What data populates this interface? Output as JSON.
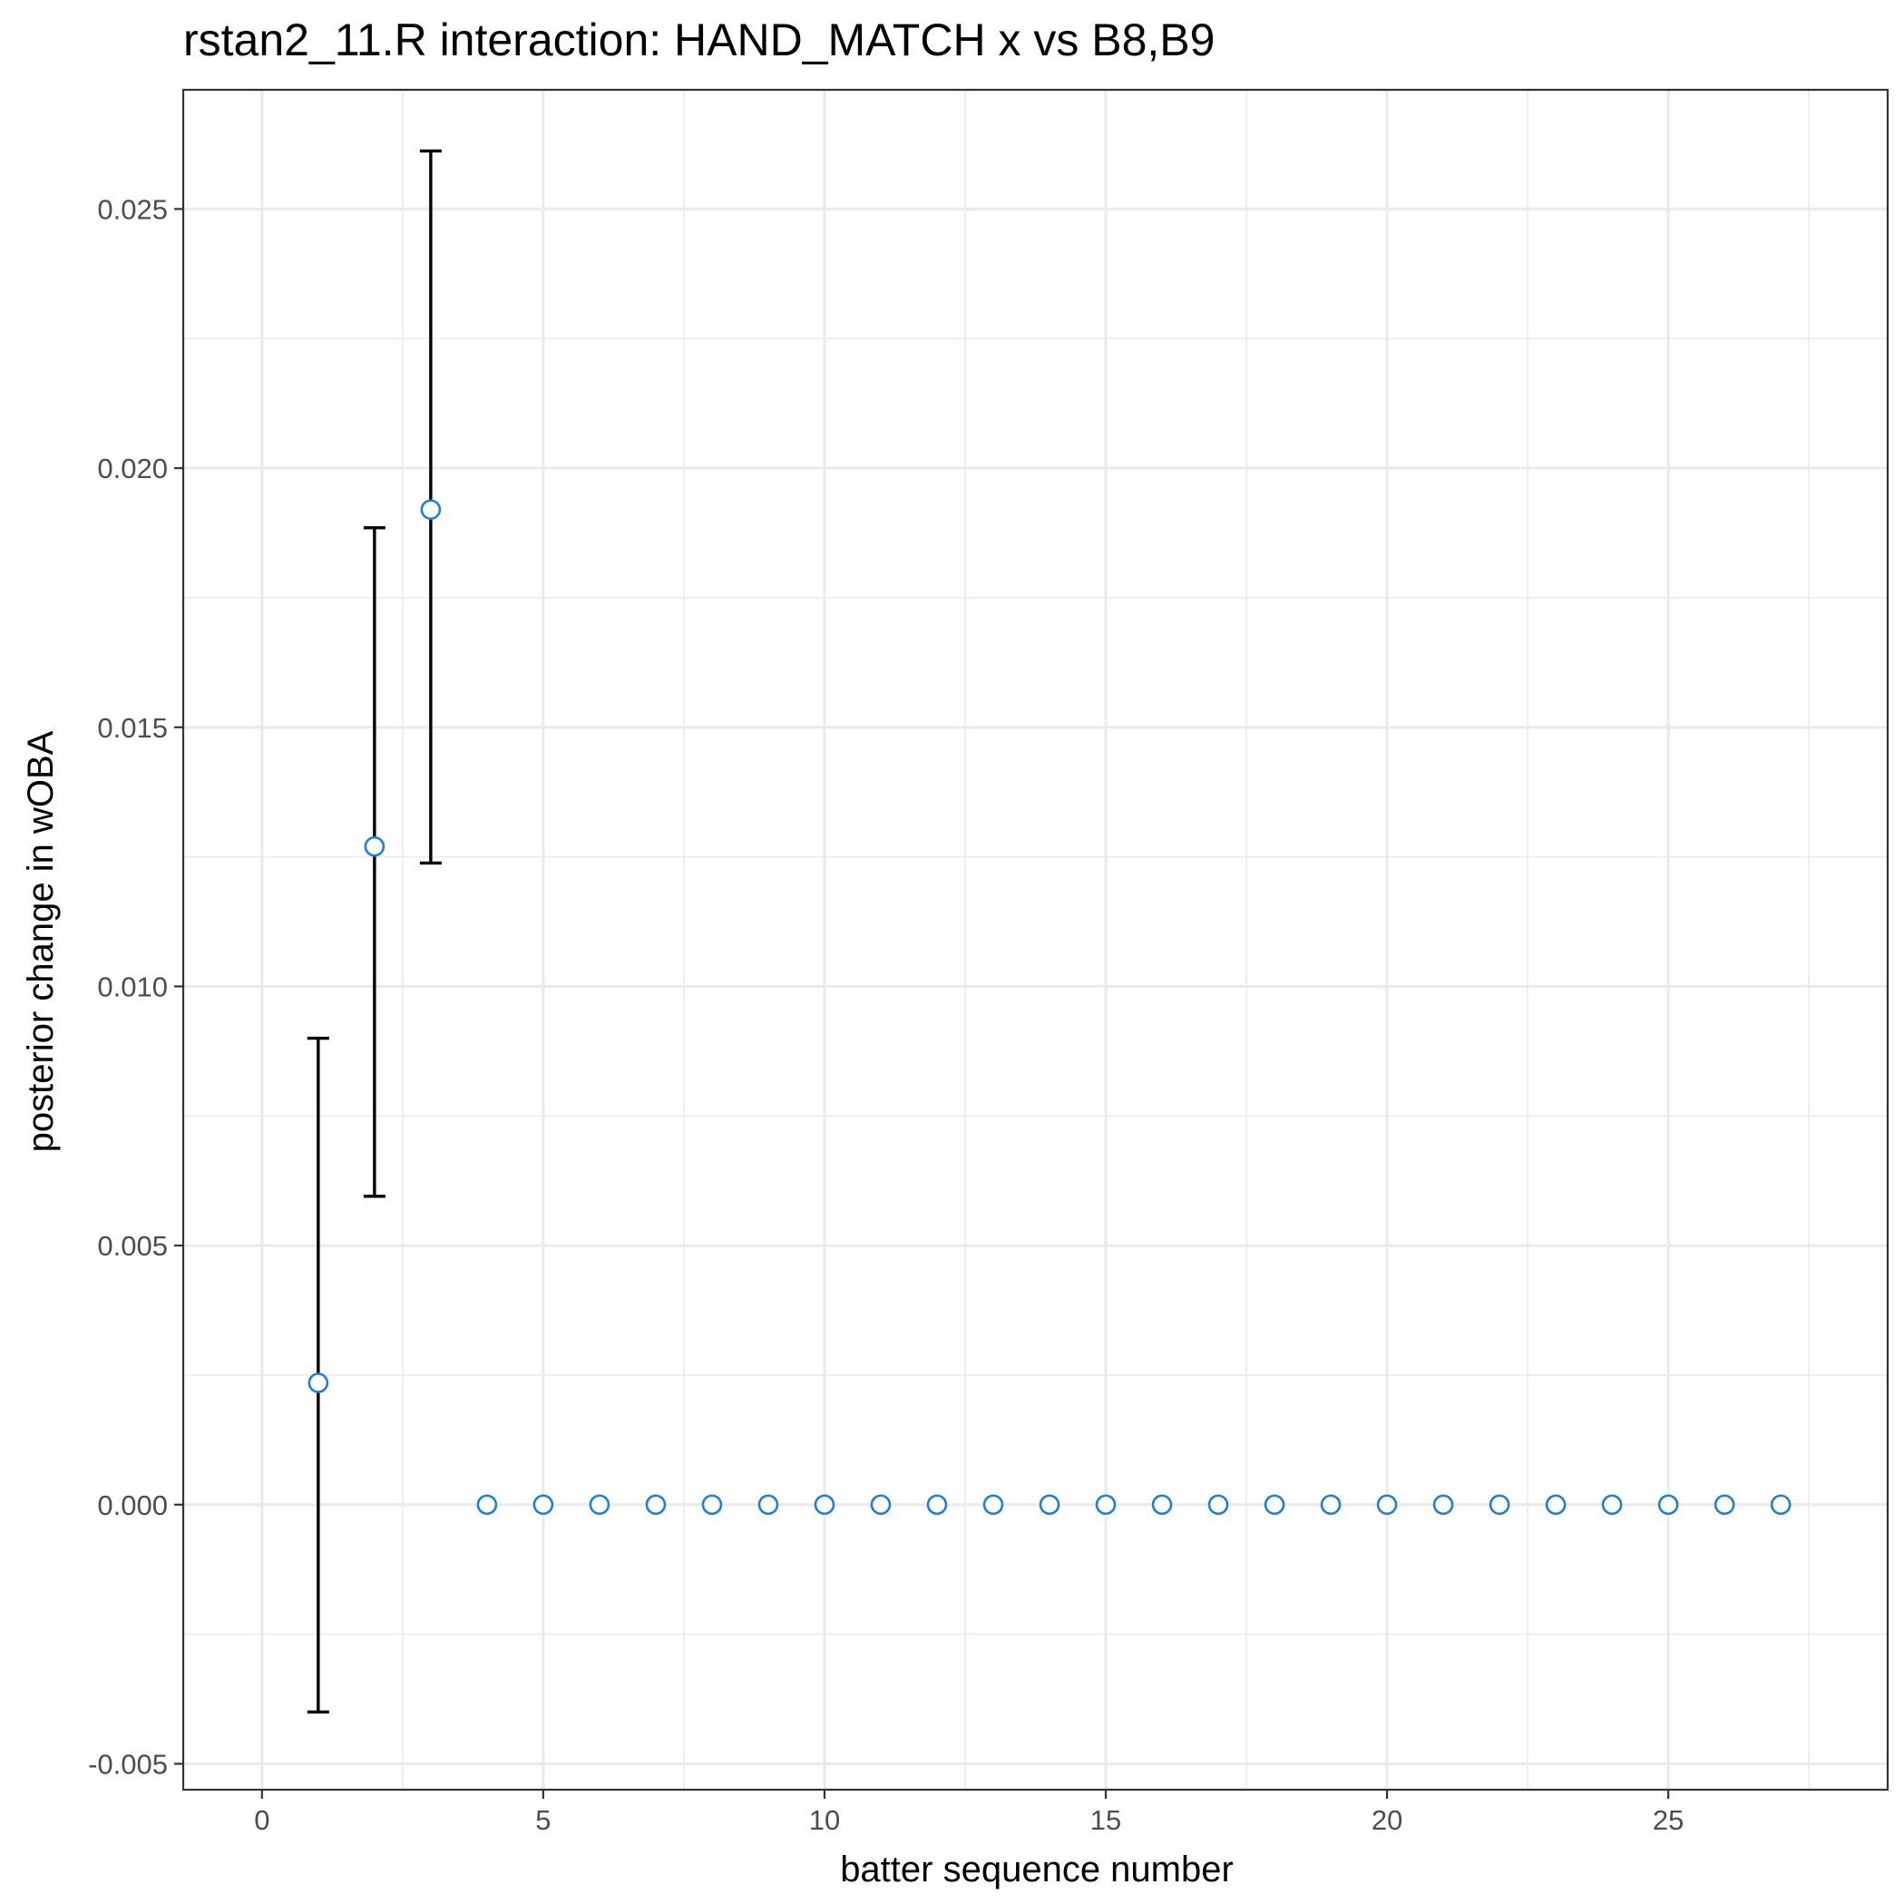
{
  "chart_data": {
    "type": "scatter",
    "title": "rstan2_11.R interaction: HAND_MATCH x vs B8,B9",
    "xlabel": "batter sequence number",
    "ylabel": "posterior change in wOBA",
    "xlim": [
      -1.4,
      28.9
    ],
    "ylim": [
      -0.0055,
      0.0273
    ],
    "x_ticks": [
      0,
      5,
      10,
      15,
      20,
      25
    ],
    "x_tick_labels": [
      "0",
      "5",
      "10",
      "15",
      "20",
      "25"
    ],
    "y_ticks": [
      -0.005,
      0.0,
      0.005,
      0.01,
      0.015,
      0.02,
      0.025
    ],
    "y_tick_labels": [
      "-0.005",
      "0.000",
      "0.005",
      "0.010",
      "0.015",
      "0.020",
      "0.025"
    ],
    "grid": true,
    "marker_color": "#1f7fd6",
    "errorbar_color": "#000000",
    "points": [
      {
        "x": 1,
        "y": 0.00235,
        "lower": -0.004,
        "upper": 0.009
      },
      {
        "x": 2,
        "y": 0.0127,
        "lower": 0.00595,
        "upper": 0.01885
      },
      {
        "x": 3,
        "y": 0.0192,
        "lower": 0.01238,
        "upper": 0.02612
      },
      {
        "x": 4,
        "y": 0.0
      },
      {
        "x": 5,
        "y": 0.0
      },
      {
        "x": 6,
        "y": 0.0
      },
      {
        "x": 7,
        "y": 0.0
      },
      {
        "x": 8,
        "y": 0.0
      },
      {
        "x": 9,
        "y": 0.0
      },
      {
        "x": 10,
        "y": 0.0
      },
      {
        "x": 11,
        "y": 0.0
      },
      {
        "x": 12,
        "y": 0.0
      },
      {
        "x": 13,
        "y": 0.0
      },
      {
        "x": 14,
        "y": 0.0
      },
      {
        "x": 15,
        "y": 0.0
      },
      {
        "x": 16,
        "y": 0.0
      },
      {
        "x": 17,
        "y": 0.0
      },
      {
        "x": 18,
        "y": 0.0
      },
      {
        "x": 19,
        "y": 0.0
      },
      {
        "x": 20,
        "y": 0.0
      },
      {
        "x": 21,
        "y": 0.0
      },
      {
        "x": 22,
        "y": 0.0
      },
      {
        "x": 23,
        "y": 0.0
      },
      {
        "x": 24,
        "y": 0.0
      },
      {
        "x": 25,
        "y": 0.0
      },
      {
        "x": 26,
        "y": 0.0
      },
      {
        "x": 27,
        "y": 0.0
      }
    ]
  }
}
